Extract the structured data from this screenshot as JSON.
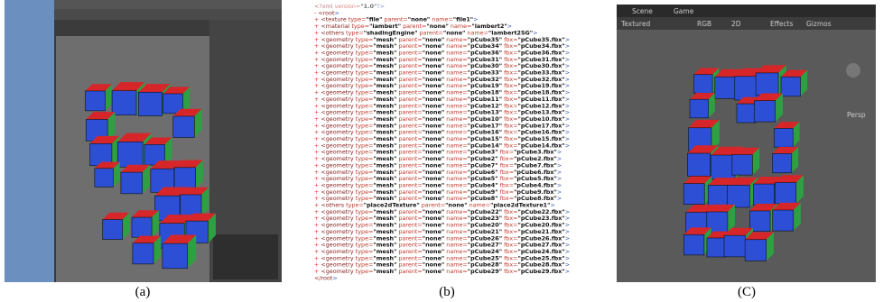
{
  "panels": [
    {
      "caption": "(a)"
    },
    {
      "caption": "(b)",
      "xml_lines": [
        "<?xml version=\"1.0\"?>",
        "- <root>",
        "+ <texture type=\"file\" parent=\"none\" name=\"file1\">",
        "+ <material type=\"lambert\" parent=\"none\" name=\"lambert2\">",
        "+ <others type=\"shadingEngine\" parent=\"none\" name=\"lambert2SG\">",
        "+ <geometry type=\"mesh\" parent=\"none\" name=\"pCube35\" fbx=\"pCube35.fbx\">",
        "+ <geometry type=\"mesh\" parent=\"none\" name=\"pCube34\" fbx=\"pCube34.fbx\">",
        "+ <geometry type=\"mesh\" parent=\"none\" name=\"pCube36\" fbx=\"pCube36.fbx\">",
        "+ <geometry type=\"mesh\" parent=\"none\" name=\"pCube31\" fbx=\"pCube31.fbx\">",
        "+ <geometry type=\"mesh\" parent=\"none\" name=\"pCube30\" fbx=\"pCube30.fbx\">",
        "+ <geometry type=\"mesh\" parent=\"none\" name=\"pCube33\" fbx=\"pCube33.fbx\">",
        "+ <geometry type=\"mesh\" parent=\"none\" name=\"pCube32\" fbx=\"pCube32.fbx\">",
        "+ <geometry type=\"mesh\" parent=\"none\" name=\"pCube19\" fbx=\"pCube19.fbx\">",
        "+ <geometry type=\"mesh\" parent=\"none\" name=\"pCube18\" fbx=\"pCube18.fbx\">",
        "+ <geometry type=\"mesh\" parent=\"none\" name=\"pCube11\" fbx=\"pCube11.fbx\">",
        "+ <geometry type=\"mesh\" parent=\"none\" name=\"pCube12\" fbx=\"pCube12.fbx\">",
        "+ <geometry type=\"mesh\" parent=\"none\" name=\"pCube13\" fbx=\"pCube13.fbx\">",
        "+ <geometry type=\"mesh\" parent=\"none\" name=\"pCube10\" fbx=\"pCube10.fbx\">",
        "+ <geometry type=\"mesh\" parent=\"none\" name=\"pCube17\" fbx=\"pCube17.fbx\">",
        "+ <geometry type=\"mesh\" parent=\"none\" name=\"pCube16\" fbx=\"pCube16.fbx\">",
        "+ <geometry type=\"mesh\" parent=\"none\" name=\"pCube15\" fbx=\"pCube15.fbx\">",
        "+ <geometry type=\"mesh\" parent=\"none\" name=\"pCube14\" fbx=\"pCube14.fbx\">",
        "+ <geometry type=\"mesh\" parent=\"none\" name=\"pCube3\" fbx=\"pCube3.fbx\">",
        "+ <geometry type=\"mesh\" parent=\"none\" name=\"pCube2\" fbx=\"pCube2.fbx\">",
        "+ <geometry type=\"mesh\" parent=\"none\" name=\"pCube7\" fbx=\"pCube7.fbx\">",
        "+ <geometry type=\"mesh\" parent=\"none\" name=\"pCube6\" fbx=\"pCube6.fbx\">",
        "+ <geometry type=\"mesh\" parent=\"none\" name=\"pCube5\" fbx=\"pCube5.fbx\">",
        "+ <geometry type=\"mesh\" parent=\"none\" name=\"pCube4\" fbx=\"pCube4.fbx\">",
        "+ <geometry type=\"mesh\" parent=\"none\" name=\"pCube9\" fbx=\"pCube9.fbx\">",
        "+ <geometry type=\"mesh\" parent=\"none\" name=\"pCube8\" fbx=\"pCube8.fbx\">",
        "+ <others type=\"place2dTexture\" parent=\"none\" name=\"place2dTexture1\">",
        "+ <geometry type=\"mesh\" parent=\"none\" name=\"pCube22\" fbx=\"pCube22.fbx\">",
        "+ <geometry type=\"mesh\" parent=\"none\" name=\"pCube23\" fbx=\"pCube23.fbx\">",
        "+ <geometry type=\"mesh\" parent=\"none\" name=\"pCube20\" fbx=\"pCube20.fbx\">",
        "+ <geometry type=\"mesh\" parent=\"none\" name=\"pCube21\" fbx=\"pCube21.fbx\">",
        "+ <geometry type=\"mesh\" parent=\"none\" name=\"pCube26\" fbx=\"pCube26.fbx\">",
        "+ <geometry type=\"mesh\" parent=\"none\" name=\"pCube27\" fbx=\"pCube27.fbx\">",
        "+ <geometry type=\"mesh\" parent=\"none\" name=\"pCube24\" fbx=\"pCube24.fbx\">",
        "+ <geometry type=\"mesh\" parent=\"none\" name=\"pCube25\" fbx=\"pCube25.fbx\">",
        "+ <geometry type=\"mesh\" parent=\"none\" name=\"pCube28\" fbx=\"pCube28.fbx\">",
        "+ <geometry type=\"mesh\" parent=\"none\" name=\"pCube29\" fbx=\"pCube29.fbx\">",
        "</root>"
      ]
    },
    {
      "caption": "(C)",
      "tabs": [
        "Scene",
        "Game"
      ],
      "toolbar": [
        "Textured",
        "RGB",
        "2D",
        "Effects",
        "Gizmos"
      ],
      "view_label": "Persp"
    }
  ]
}
